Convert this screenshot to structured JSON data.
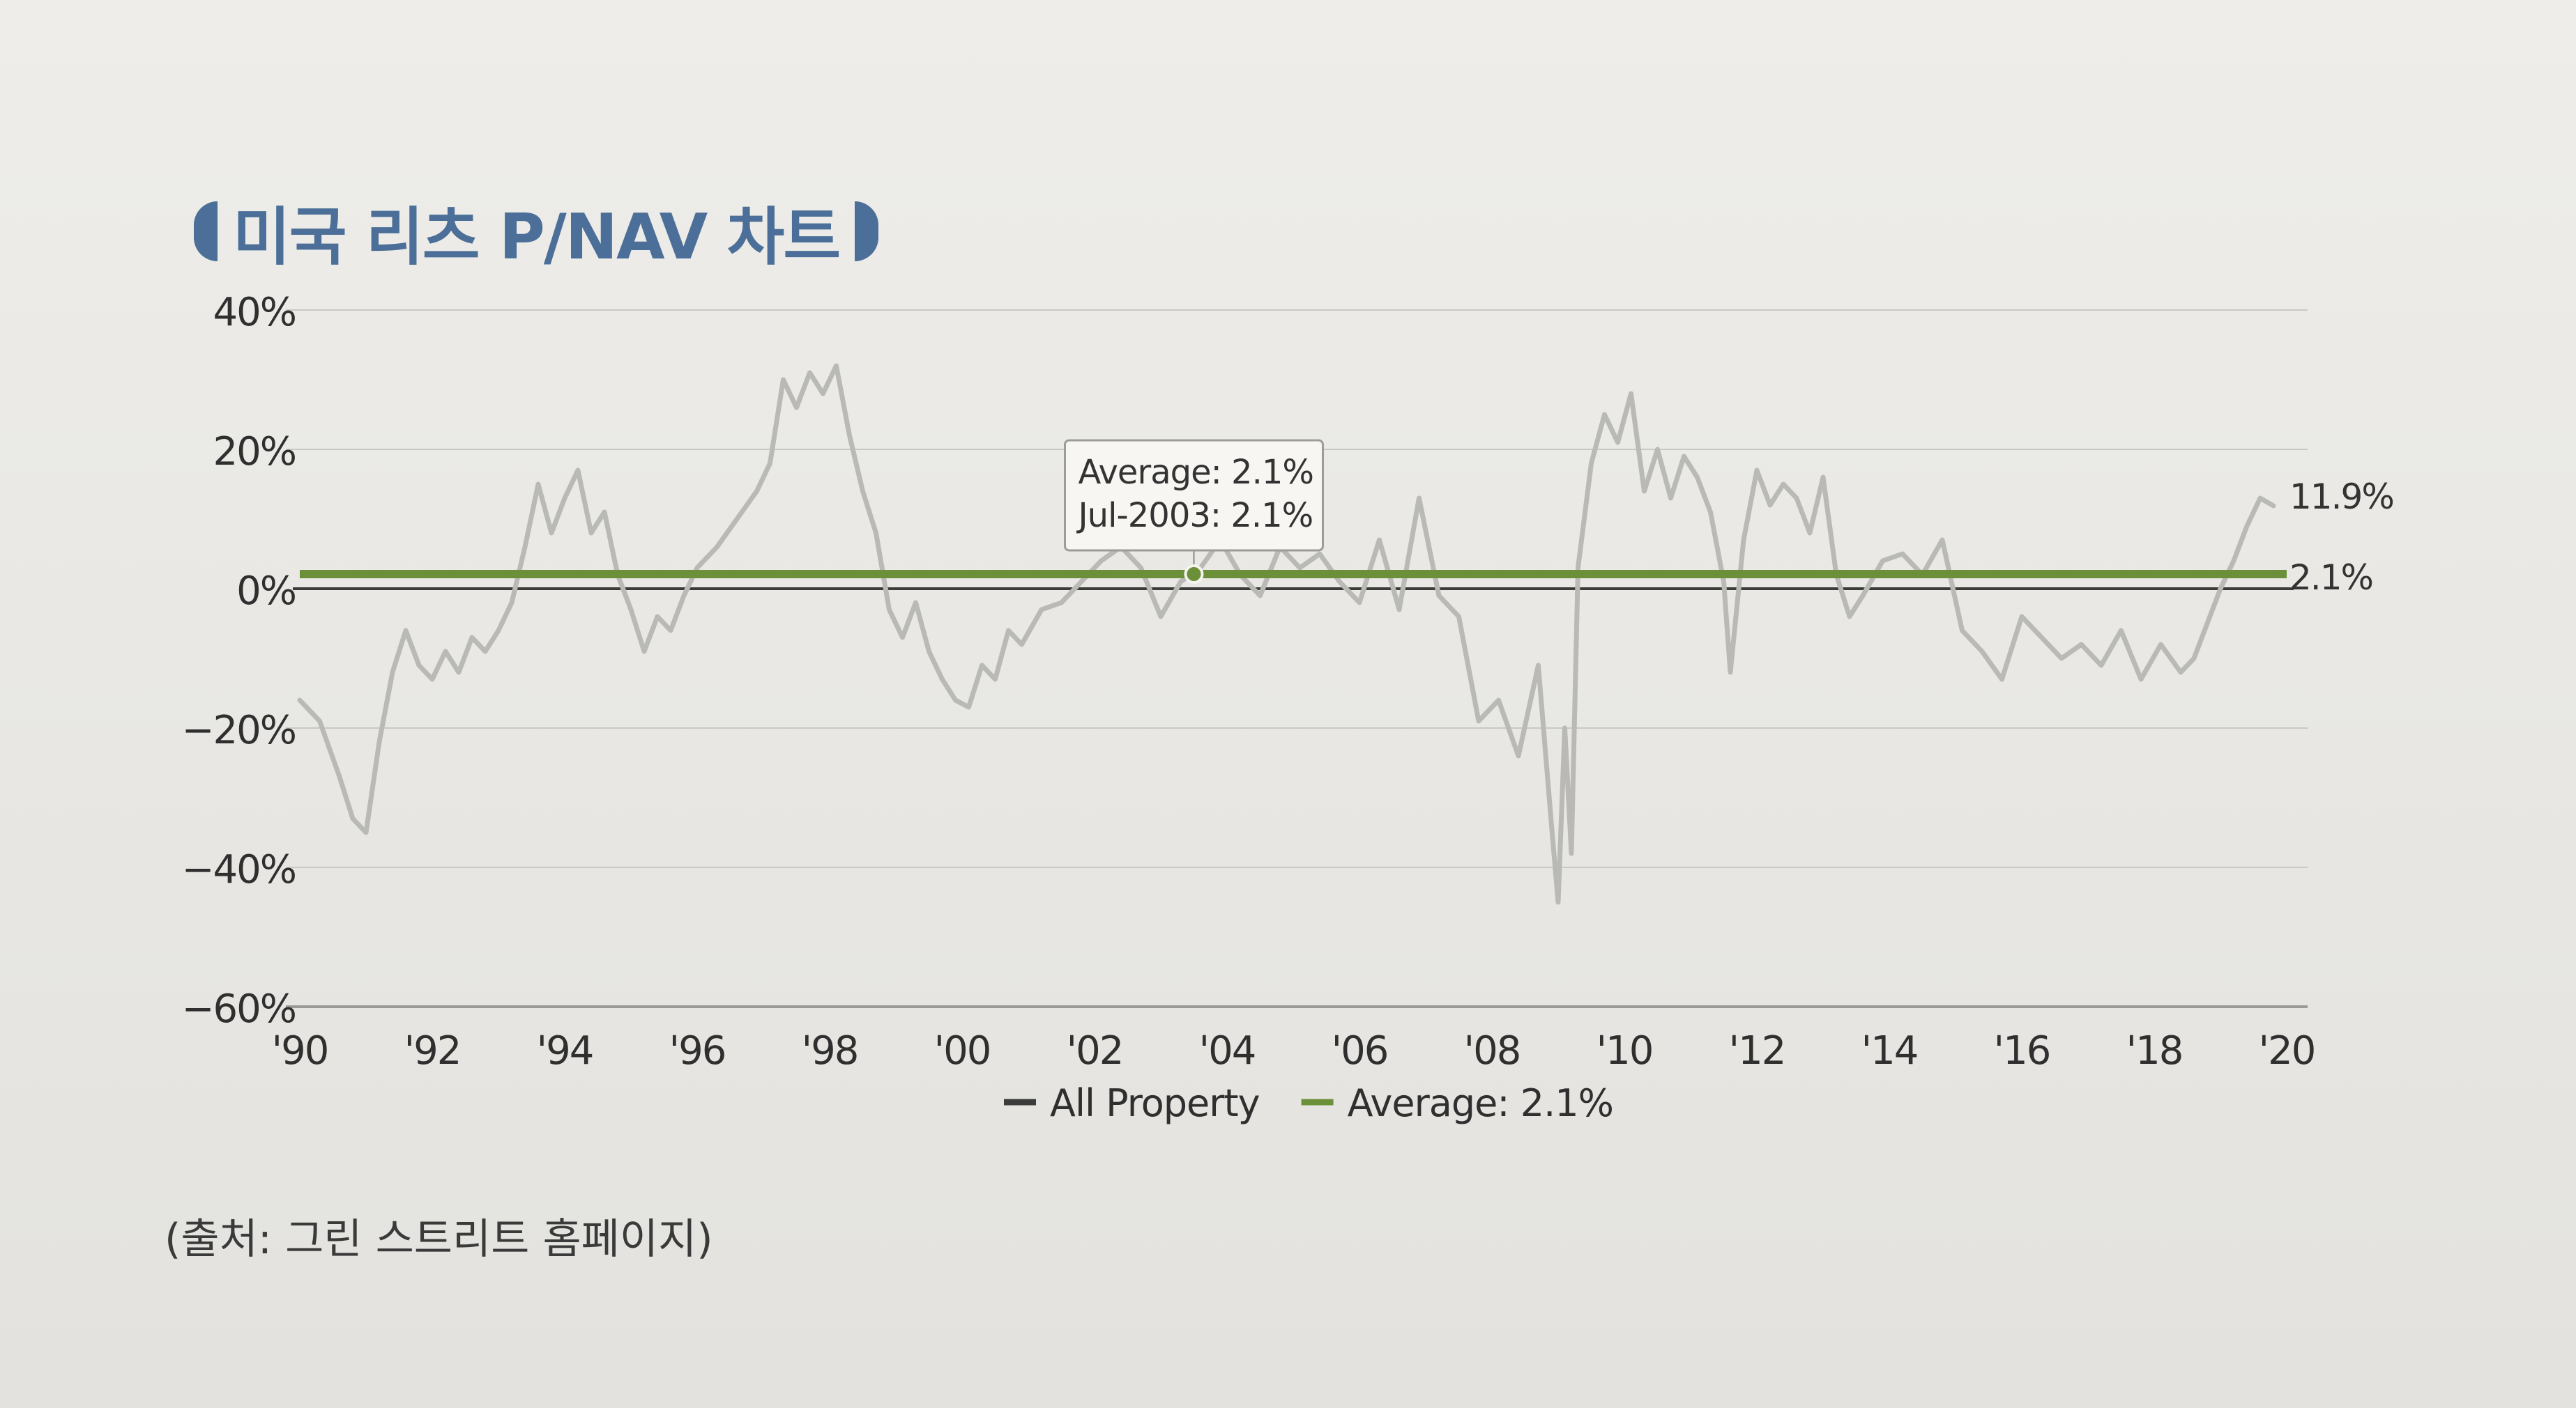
{
  "title": "미국 리츠 P/NAV 차트",
  "source": "(출처: 그린 스트리트 홈페이지)",
  "colors": {
    "title": "#4b6f98",
    "series_all_property": "#b9b9b6",
    "series_average": "#6c8f3a",
    "zero_line": "#3b3b3b",
    "grid": "#c9c8c4",
    "text": "#333333"
  },
  "chart_data": {
    "type": "line",
    "title": "미국 리츠 P/NAV 차트",
    "xlabel": "",
    "ylabel": "",
    "xlim": [
      1990,
      2020
    ],
    "ylim": [
      -60,
      40
    ],
    "x_ticks": [
      1990,
      1992,
      1994,
      1996,
      1998,
      2000,
      2002,
      2004,
      2006,
      2008,
      2010,
      2012,
      2014,
      2016,
      2018,
      2020
    ],
    "x_tick_labels": [
      "'90",
      "'92",
      "'94",
      "'96",
      "'98",
      "'00",
      "'02",
      "'04",
      "'06",
      "'08",
      "'10",
      "'12",
      "'14",
      "'16",
      "'18",
      "'20"
    ],
    "y_ticks": [
      40,
      20,
      0,
      -20,
      -40,
      -60
    ],
    "y_tick_labels": [
      "40%",
      "20%",
      "0%",
      "−20%",
      "−40%",
      "−60%"
    ],
    "grid": true,
    "legend_position": "bottom",
    "legend": [
      {
        "name": "All Property",
        "color": "#3b3b3b"
      },
      {
        "name": "Average: 2.1%",
        "color": "#6c8f3a"
      }
    ],
    "series": [
      {
        "name": "All Property",
        "color": "#b9b9b6",
        "x": [
          1990.0,
          1990.3,
          1990.6,
          1990.8,
          1991.0,
          1991.2,
          1991.4,
          1991.6,
          1991.8,
          1992.0,
          1992.2,
          1992.4,
          1992.6,
          1992.8,
          1993.0,
          1993.2,
          1993.4,
          1993.6,
          1993.8,
          1994.0,
          1994.2,
          1994.4,
          1994.6,
          1994.8,
          1995.0,
          1995.2,
          1995.4,
          1995.6,
          1995.8,
          1996.0,
          1996.3,
          1996.6,
          1996.9,
          1997.1,
          1997.3,
          1997.5,
          1997.7,
          1997.9,
          1998.1,
          1998.3,
          1998.5,
          1998.7,
          1998.9,
          1999.1,
          1999.3,
          1999.5,
          1999.7,
          1999.9,
          2000.1,
          2000.3,
          2000.5,
          2000.7,
          2000.9,
          2001.2,
          2001.5,
          2001.8,
          2002.1,
          2002.4,
          2002.7,
          2003.0,
          2003.3,
          2003.6,
          2003.9,
          2004.2,
          2004.5,
          2004.8,
          2005.1,
          2005.4,
          2005.7,
          2006.0,
          2006.3,
          2006.6,
          2006.9,
          2007.2,
          2007.5,
          2007.8,
          2008.1,
          2008.4,
          2008.7,
          2008.9,
          2009.0,
          2009.1,
          2009.2,
          2009.3,
          2009.5,
          2009.7,
          2009.9,
          2010.1,
          2010.3,
          2010.5,
          2010.7,
          2010.9,
          2011.1,
          2011.3,
          2011.5,
          2011.6,
          2011.8,
          2012.0,
          2012.2,
          2012.4,
          2012.6,
          2012.8,
          2013.0,
          2013.2,
          2013.4,
          2013.6,
          2013.9,
          2014.2,
          2014.5,
          2014.8,
          2015.1,
          2015.4,
          2015.7,
          2016.0,
          2016.3,
          2016.6,
          2016.9,
          2017.2,
          2017.5,
          2017.8,
          2018.1,
          2018.4,
          2018.6,
          2018.8,
          2019.0,
          2019.2,
          2019.4,
          2019.6,
          2019.8
        ],
        "values": [
          -16,
          -19,
          -27,
          -33,
          -35,
          -22,
          -12,
          -6,
          -11,
          -13,
          -9,
          -12,
          -7,
          -9,
          -6,
          -2,
          6,
          15,
          8,
          13,
          17,
          8,
          11,
          2,
          -3,
          -9,
          -4,
          -6,
          -1,
          3,
          6,
          10,
          14,
          18,
          30,
          26,
          31,
          28,
          32,
          22,
          14,
          8,
          -3,
          -7,
          -2,
          -9,
          -13,
          -16,
          -17,
          -11,
          -13,
          -6,
          -8,
          -3,
          -2,
          1,
          4,
          6,
          3,
          -4,
          1,
          3,
          7,
          2,
          -1,
          6,
          3,
          5,
          1,
          -2,
          7,
          -3,
          13,
          -1,
          -4,
          -19,
          -16,
          -24,
          -11,
          -34,
          -45,
          -20,
          -38,
          3,
          18,
          25,
          21,
          28,
          14,
          20,
          13,
          19,
          16,
          11,
          1,
          -12,
          7,
          17,
          12,
          15,
          13,
          8,
          16,
          2,
          -4,
          -1,
          4,
          5,
          2,
          7,
          -6,
          -9,
          -13,
          -4,
          -7,
          -10,
          -8,
          -11,
          -6,
          -13,
          -8,
          -12,
          -10,
          -5,
          0,
          4,
          9,
          13,
          11.9
        ]
      },
      {
        "name": "Average: 2.1%",
        "color": "#6c8f3a",
        "x": [
          1990,
          2020
        ],
        "values": [
          2.1,
          2.1
        ]
      }
    ],
    "annotations": {
      "tooltip": [
        "Average: 2.1%",
        "Jul-2003: 2.1%"
      ],
      "tooltip_point": {
        "x": 2003.5,
        "y": 2.1
      },
      "end_labels": [
        "11.9%",
        "2.1%"
      ]
    }
  }
}
